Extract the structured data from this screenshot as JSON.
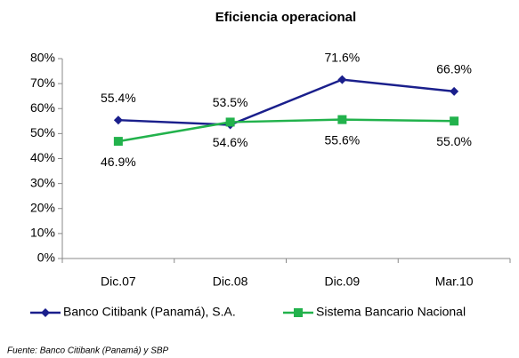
{
  "chart_data": {
    "type": "line",
    "title": "Eficiencia operacional",
    "categories": [
      "Dic.07",
      "Dic.08",
      "Dic.09",
      "Mar.10"
    ],
    "series": [
      {
        "name": "Banco Citibank (Panamá), S.A.",
        "color": "#1a1f8c",
        "marker": "diamond",
        "values": [
          55.4,
          53.5,
          71.6,
          66.9
        ],
        "value_labels": [
          "55.4%",
          "53.5%",
          "71.6%",
          "66.9%"
        ]
      },
      {
        "name": "Sistema Bancario Nacional",
        "color": "#22b24c",
        "marker": "square",
        "values": [
          46.9,
          54.6,
          55.6,
          55.0
        ],
        "value_labels": [
          "46.9%",
          "54.6%",
          "55.6%",
          "55.0%"
        ]
      }
    ],
    "ylim": [
      0,
      80
    ],
    "yticks": [
      {
        "value": 0,
        "label": "0%"
      },
      {
        "value": 10,
        "label": "10%"
      },
      {
        "value": 20,
        "label": "20%"
      },
      {
        "value": 30,
        "label": "30%"
      },
      {
        "value": 40,
        "label": "40%"
      },
      {
        "value": 50,
        "label": "50%"
      },
      {
        "value": 60,
        "label": "60%"
      },
      {
        "value": 70,
        "label": "70%"
      },
      {
        "value": 80,
        "label": "80%"
      }
    ],
    "legend": "bottom",
    "source": "Fuente: Banco Citibank (Panamá) y SBP"
  }
}
